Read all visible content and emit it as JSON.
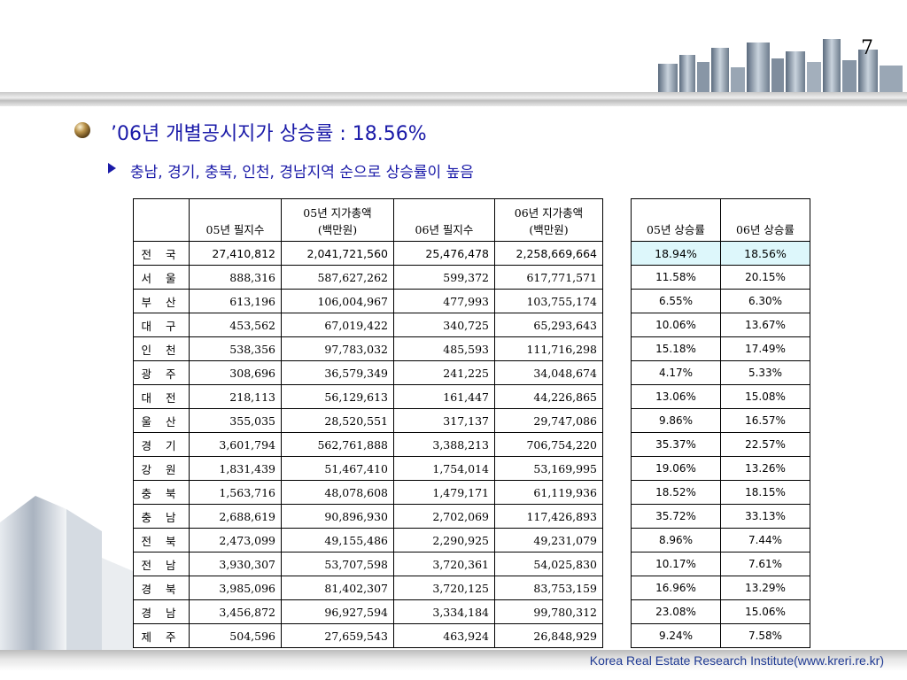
{
  "page_number": "7",
  "heading": "’06년 개별공시지가 상승률 : 18.56%",
  "subheading": "충남, 경기, 충북, 인천, 경남지역 순으로 상승률이 높음",
  "footer": "Korea Real Estate Research Institute(www.kreri.re.kr)",
  "table_left": {
    "headers": [
      "",
      "05년 필지수",
      "05년 지가총액\n(백만원)",
      "06년 필지수",
      "06년 지가총액\n(백만원)"
    ],
    "rows": [
      [
        "전 국",
        "27,410,812",
        "2,041,721,560",
        "25,476,478",
        "2,258,669,664"
      ],
      [
        "서 울",
        "888,316",
        "587,627,262",
        "599,372",
        "617,771,571"
      ],
      [
        "부 산",
        "613,196",
        "106,004,967",
        "477,993",
        "103,755,174"
      ],
      [
        "대 구",
        "453,562",
        "67,019,422",
        "340,725",
        "65,293,643"
      ],
      [
        "인 천",
        "538,356",
        "97,783,032",
        "485,593",
        "111,716,298"
      ],
      [
        "광 주",
        "308,696",
        "36,579,349",
        "241,225",
        "34,048,674"
      ],
      [
        "대 전",
        "218,113",
        "56,129,613",
        "161,447",
        "44,226,865"
      ],
      [
        "울 산",
        "355,035",
        "28,520,551",
        "317,137",
        "29,747,086"
      ],
      [
        "경 기",
        "3,601,794",
        "562,761,888",
        "3,388,213",
        "706,754,220"
      ],
      [
        "강 원",
        "1,831,439",
        "51,467,410",
        "1,754,014",
        "53,169,995"
      ],
      [
        "충 북",
        "1,563,716",
        "48,078,608",
        "1,479,171",
        "61,119,936"
      ],
      [
        "충 남",
        "2,688,619",
        "90,896,930",
        "2,702,069",
        "117,426,893"
      ],
      [
        "전 북",
        "2,473,099",
        "49,155,486",
        "2,290,925",
        "49,231,079"
      ],
      [
        "전 남",
        "3,930,307",
        "53,707,598",
        "3,720,361",
        "54,025,830"
      ],
      [
        "경 북",
        "3,985,096",
        "81,402,307",
        "3,720,125",
        "83,753,159"
      ],
      [
        "경 남",
        "3,456,872",
        "96,927,594",
        "3,334,184",
        "99,780,312"
      ],
      [
        "제 주",
        "504,596",
        "27,659,543",
        "463,924",
        "26,848,929"
      ]
    ]
  },
  "table_right": {
    "headers": [
      "05년 상승률",
      "06년 상승률"
    ],
    "rows": [
      [
        "18.94%",
        "18.56%"
      ],
      [
        "11.58%",
        "20.15%"
      ],
      [
        "6.55%",
        "6.30%"
      ],
      [
        "10.06%",
        "13.67%"
      ],
      [
        "15.18%",
        "17.49%"
      ],
      [
        "4.17%",
        "5.33%"
      ],
      [
        "13.06%",
        "15.08%"
      ],
      [
        "9.86%",
        "16.57%"
      ],
      [
        "35.37%",
        "22.57%"
      ],
      [
        "19.06%",
        "13.26%"
      ],
      [
        "18.52%",
        "18.15%"
      ],
      [
        "35.72%",
        "33.13%"
      ],
      [
        "8.96%",
        "7.44%"
      ],
      [
        "10.17%",
        "7.61%"
      ],
      [
        "16.96%",
        "13.29%"
      ],
      [
        "23.08%",
        "15.06%"
      ],
      [
        "9.24%",
        "7.58%"
      ]
    ]
  },
  "colors": {
    "heading": "#1a1aa8",
    "footer": "#1f3a93",
    "highlight": "#ddf7fb"
  }
}
